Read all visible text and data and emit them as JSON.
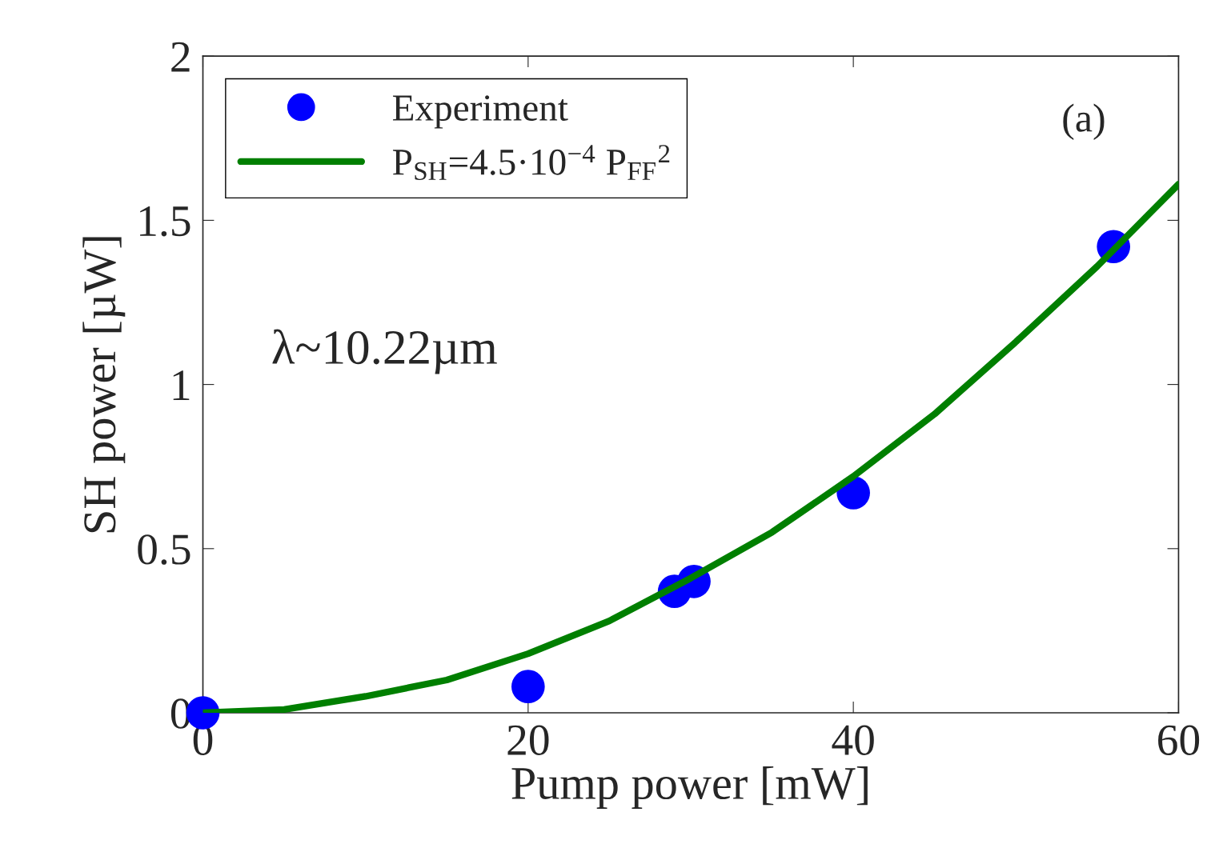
{
  "chart_data": {
    "type": "scatter",
    "xlabel": "Pump power [mW]",
    "ylabel": "SH power [µW]",
    "xlim": [
      0,
      60
    ],
    "xticks": [
      0,
      20,
      40,
      60
    ],
    "ylim": [
      0,
      2
    ],
    "yticks": [
      0,
      0.5,
      1,
      1.5,
      2
    ],
    "grid": false,
    "legend": "top left",
    "annotations": [
      "λ~10.22µm",
      "(a)"
    ],
    "series": [
      {
        "name": "Experiment",
        "marker": "circle",
        "color": "#0000ff",
        "x": [
          0,
          20,
          29,
          30.2,
          40,
          56
        ],
        "values": [
          0,
          0.08,
          0.37,
          0.4,
          0.67,
          1.42
        ]
      },
      {
        "name": "P$_{SH}$=4.5·10$^{−4}$ P$_{FF}$$^{2}$",
        "type": "line",
        "marker": "none",
        "line_style": "solid",
        "color": "#007f00",
        "x": [
          0,
          5,
          10,
          15,
          20,
          25,
          30,
          35,
          40,
          45,
          50,
          55,
          60
        ],
        "values": [
          0,
          0.01,
          0.05,
          0.1,
          0.18,
          0.28,
          0.41,
          0.55,
          0.72,
          0.91,
          1.13,
          1.36,
          1.61
        ]
      }
    ]
  }
}
